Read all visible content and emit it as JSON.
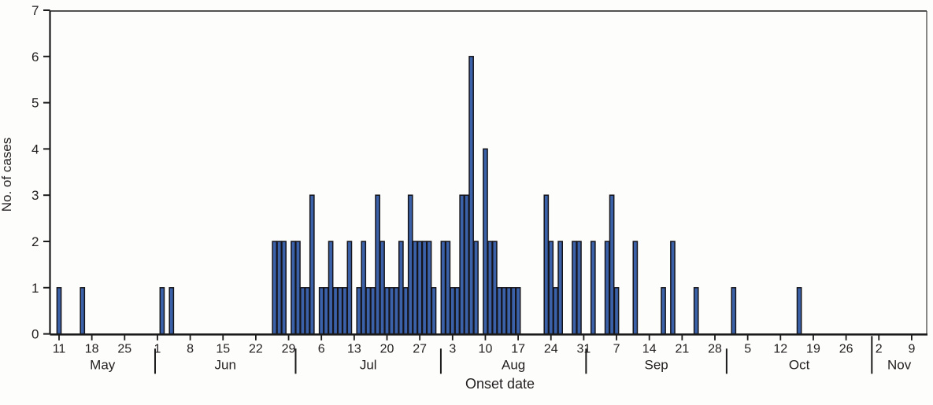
{
  "chart_data": {
    "type": "bar",
    "title": "",
    "xlabel": "Onset date",
    "ylabel": "No. of cases",
    "ylim": [
      0,
      7
    ],
    "grid": "off",
    "y_ticks": [
      "0",
      "1",
      "2",
      "3",
      "4",
      "5",
      "6",
      "7"
    ],
    "x_axis_start_date": "May 11",
    "x_tick_interval_days": 7,
    "x_tick_labels": [
      "11",
      "18",
      "25",
      "1",
      "8",
      "15",
      "22",
      "29",
      "6",
      "13",
      "20",
      "27",
      "3",
      "10",
      "17",
      "24",
      "31",
      "7",
      "14",
      "21",
      "28",
      "5",
      "12",
      "19",
      "26",
      "2",
      "9"
    ],
    "months": [
      {
        "label": "May"
      },
      {
        "label": "Jun"
      },
      {
        "label": "Jul"
      },
      {
        "label": "Aug"
      },
      {
        "label": "Sep"
      },
      {
        "label": "Oct"
      },
      {
        "label": "Nov"
      }
    ],
    "month_boundaries_day": [
      20.5,
      50.5,
      81.5,
      112.5,
      142.5,
      173.5
    ],
    "bar_color": "#3B61A9",
    "bar_outline_color": "#14141a",
    "axis_color": "#1a1a1a",
    "data": [
      {
        "date": "May 11",
        "day": 0,
        "cases": 1
      },
      {
        "date": "May 16",
        "day": 5,
        "cases": 1
      },
      {
        "date": "Jun 2",
        "day": 22,
        "cases": 1
      },
      {
        "date": "Jun 4",
        "day": 24,
        "cases": 1
      },
      {
        "date": "Jun 26",
        "day": 46,
        "cases": 2
      },
      {
        "date": "Jun 27",
        "day": 47,
        "cases": 2
      },
      {
        "date": "Jun 28",
        "day": 48,
        "cases": 2
      },
      {
        "date": "Jun 30",
        "day": 50,
        "cases": 2
      },
      {
        "date": "Jul 1",
        "day": 51,
        "cases": 2
      },
      {
        "date": "Jul 2",
        "day": 52,
        "cases": 1
      },
      {
        "date": "Jul 3",
        "day": 53,
        "cases": 1
      },
      {
        "date": "Jul 4",
        "day": 54,
        "cases": 3
      },
      {
        "date": "Jul 6",
        "day": 56,
        "cases": 1
      },
      {
        "date": "Jul 7",
        "day": 57,
        "cases": 1
      },
      {
        "date": "Jul 8",
        "day": 58,
        "cases": 2
      },
      {
        "date": "Jul 9",
        "day": 59,
        "cases": 1
      },
      {
        "date": "Jul 10",
        "day": 60,
        "cases": 1
      },
      {
        "date": "Jul 11",
        "day": 61,
        "cases": 1
      },
      {
        "date": "Jul 12",
        "day": 62,
        "cases": 2
      },
      {
        "date": "Jul 14",
        "day": 64,
        "cases": 1
      },
      {
        "date": "Jul 15",
        "day": 65,
        "cases": 2
      },
      {
        "date": "Jul 16",
        "day": 66,
        "cases": 1
      },
      {
        "date": "Jul 17",
        "day": 67,
        "cases": 1
      },
      {
        "date": "Jul 18",
        "day": 68,
        "cases": 3
      },
      {
        "date": "Jul 19",
        "day": 69,
        "cases": 2
      },
      {
        "date": "Jul 20",
        "day": 70,
        "cases": 1
      },
      {
        "date": "Jul 21",
        "day": 71,
        "cases": 1
      },
      {
        "date": "Jul 22",
        "day": 72,
        "cases": 1
      },
      {
        "date": "Jul 23",
        "day": 73,
        "cases": 2
      },
      {
        "date": "Jul 24",
        "day": 74,
        "cases": 1
      },
      {
        "date": "Jul 25",
        "day": 75,
        "cases": 3
      },
      {
        "date": "Jul 26",
        "day": 76,
        "cases": 2
      },
      {
        "date": "Jul 27",
        "day": 77,
        "cases": 2
      },
      {
        "date": "Jul 28",
        "day": 78,
        "cases": 2
      },
      {
        "date": "Jul 29",
        "day": 79,
        "cases": 2
      },
      {
        "date": "Jul 30",
        "day": 80,
        "cases": 1
      },
      {
        "date": "Aug 1",
        "day": 82,
        "cases": 2
      },
      {
        "date": "Aug 2",
        "day": 83,
        "cases": 2
      },
      {
        "date": "Aug 3",
        "day": 84,
        "cases": 1
      },
      {
        "date": "Aug 4",
        "day": 85,
        "cases": 1
      },
      {
        "date": "Aug 5",
        "day": 86,
        "cases": 3
      },
      {
        "date": "Aug 6",
        "day": 87,
        "cases": 3
      },
      {
        "date": "Aug 7",
        "day": 88,
        "cases": 6
      },
      {
        "date": "Aug 8",
        "day": 89,
        "cases": 2
      },
      {
        "date": "Aug 10",
        "day": 91,
        "cases": 4
      },
      {
        "date": "Aug 11",
        "day": 92,
        "cases": 2
      },
      {
        "date": "Aug 12",
        "day": 93,
        "cases": 2
      },
      {
        "date": "Aug 13",
        "day": 94,
        "cases": 1
      },
      {
        "date": "Aug 14",
        "day": 95,
        "cases": 1
      },
      {
        "date": "Aug 15",
        "day": 96,
        "cases": 1
      },
      {
        "date": "Aug 16",
        "day": 97,
        "cases": 1
      },
      {
        "date": "Aug 17",
        "day": 98,
        "cases": 1
      },
      {
        "date": "Aug 23",
        "day": 104,
        "cases": 3
      },
      {
        "date": "Aug 24",
        "day": 105,
        "cases": 2
      },
      {
        "date": "Aug 25",
        "day": 106,
        "cases": 1
      },
      {
        "date": "Aug 26",
        "day": 107,
        "cases": 2
      },
      {
        "date": "Aug 29",
        "day": 110,
        "cases": 2
      },
      {
        "date": "Aug 30",
        "day": 111,
        "cases": 2
      },
      {
        "date": "Sep 2",
        "day": 114,
        "cases": 2
      },
      {
        "date": "Sep 5",
        "day": 117,
        "cases": 2
      },
      {
        "date": "Sep 6",
        "day": 118,
        "cases": 3
      },
      {
        "date": "Sep 7",
        "day": 119,
        "cases": 1
      },
      {
        "date": "Sep 11",
        "day": 123,
        "cases": 2
      },
      {
        "date": "Sep 17",
        "day": 129,
        "cases": 1
      },
      {
        "date": "Sep 19",
        "day": 131,
        "cases": 2
      },
      {
        "date": "Sep 24",
        "day": 136,
        "cases": 1
      },
      {
        "date": "Oct 2",
        "day": 144,
        "cases": 1
      },
      {
        "date": "Oct 16",
        "day": 158,
        "cases": 1
      }
    ]
  }
}
